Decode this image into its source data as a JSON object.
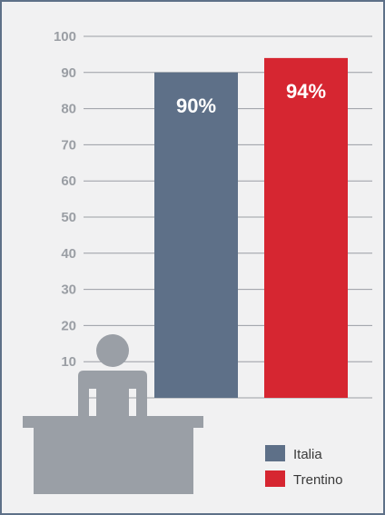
{
  "chart_data": {
    "type": "bar",
    "categories": [
      "Italia",
      "Trentino"
    ],
    "values": [
      90,
      94
    ],
    "data_labels": [
      "90%",
      "94%"
    ],
    "colors": [
      "#5e7088",
      "#d62631"
    ],
    "yticks": [
      10,
      20,
      30,
      40,
      50,
      60,
      70,
      80,
      90,
      100
    ],
    "ylim": [
      0,
      100
    ],
    "grid": true,
    "legend_position": "bottom-right",
    "legend": [
      {
        "label": "Italia",
        "color": "#5e7088"
      },
      {
        "label": "Trentino",
        "color": "#d62631"
      }
    ],
    "decoration": "person-at-desk-icon",
    "decoration_color": "#9a9fa6"
  }
}
